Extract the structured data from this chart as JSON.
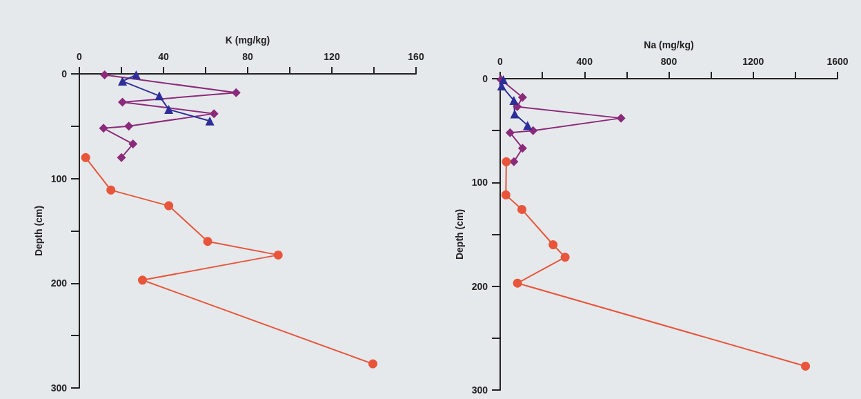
{
  "chart_data": [
    {
      "type": "line",
      "xlabel": "K (mg/kg)",
      "ylabel": "Depth (cm)",
      "xlim": [
        0,
        160
      ],
      "xticks": [
        0,
        {
          "value": 20,
          "label": null
        },
        40,
        {
          "value": 60,
          "label": null
        },
        80,
        {
          "value": 100,
          "label": null
        },
        120,
        {
          "value": 140,
          "label": null
        },
        160
      ],
      "ylim": [
        300,
        0
      ],
      "yticks": [
        0,
        {
          "value": 50,
          "label": null
        },
        100,
        {
          "value": 150,
          "label": null
        },
        200,
        {
          "value": 250,
          "label": null
        },
        300
      ],
      "grid": false,
      "series": [
        {
          "color": "#8b2a7a",
          "marker": "diamond",
          "x": [
            12,
            74.5,
            20.5,
            64,
            23.5,
            11.5,
            25.5,
            20
          ],
          "values": [
            1,
            18,
            27,
            38,
            50,
            52,
            67,
            80
          ]
        },
        {
          "color": "#2e2e9a",
          "marker": "triangle",
          "x": [
            27,
            20.5,
            38,
            42.5,
            62
          ],
          "values": [
            1,
            7,
            21,
            34,
            45
          ]
        },
        {
          "color": "#e8553a",
          "marker": "circle",
          "x": [
            3,
            15,
            42.5,
            61,
            94.5,
            30,
            139.5
          ],
          "values": [
            80,
            111,
            126,
            160,
            173,
            197,
            277
          ]
        }
      ]
    },
    {
      "type": "line",
      "xlabel": "Na (mg/kg)",
      "ylabel": "Depth (cm)",
      "xlim": [
        0,
        1600
      ],
      "xticks": [
        0,
        {
          "value": 200,
          "label": null
        },
        400,
        {
          "value": 600,
          "label": null
        },
        800,
        {
          "value": 1000,
          "label": null
        },
        1200,
        {
          "value": 1400,
          "label": null
        },
        1600
      ],
      "ylim": [
        300,
        0
      ],
      "yticks": [
        0,
        {
          "value": 50,
          "label": null
        },
        100,
        {
          "value": 150,
          "label": null
        },
        200,
        {
          "value": 250,
          "label": null
        },
        300
      ],
      "grid": false,
      "series": [
        {
          "color": "#8b2a7a",
          "marker": "diamond",
          "x": [
            4,
            106,
            81,
            573,
            156,
            47,
            106,
            65
          ],
          "values": [
            1,
            18,
            27,
            38,
            50,
            52,
            67,
            80
          ]
        },
        {
          "color": "#2e2e9a",
          "marker": "triangle",
          "x": [
            15,
            7,
            65,
            69,
            130
          ],
          "values": [
            1,
            7,
            21,
            34,
            45
          ]
        },
        {
          "color": "#e8553a",
          "marker": "circle",
          "x": [
            29,
            27,
            103,
            251,
            308,
            82,
            1448
          ],
          "values": [
            80,
            112,
            126,
            160,
            172,
            197,
            277
          ]
        }
      ]
    }
  ]
}
